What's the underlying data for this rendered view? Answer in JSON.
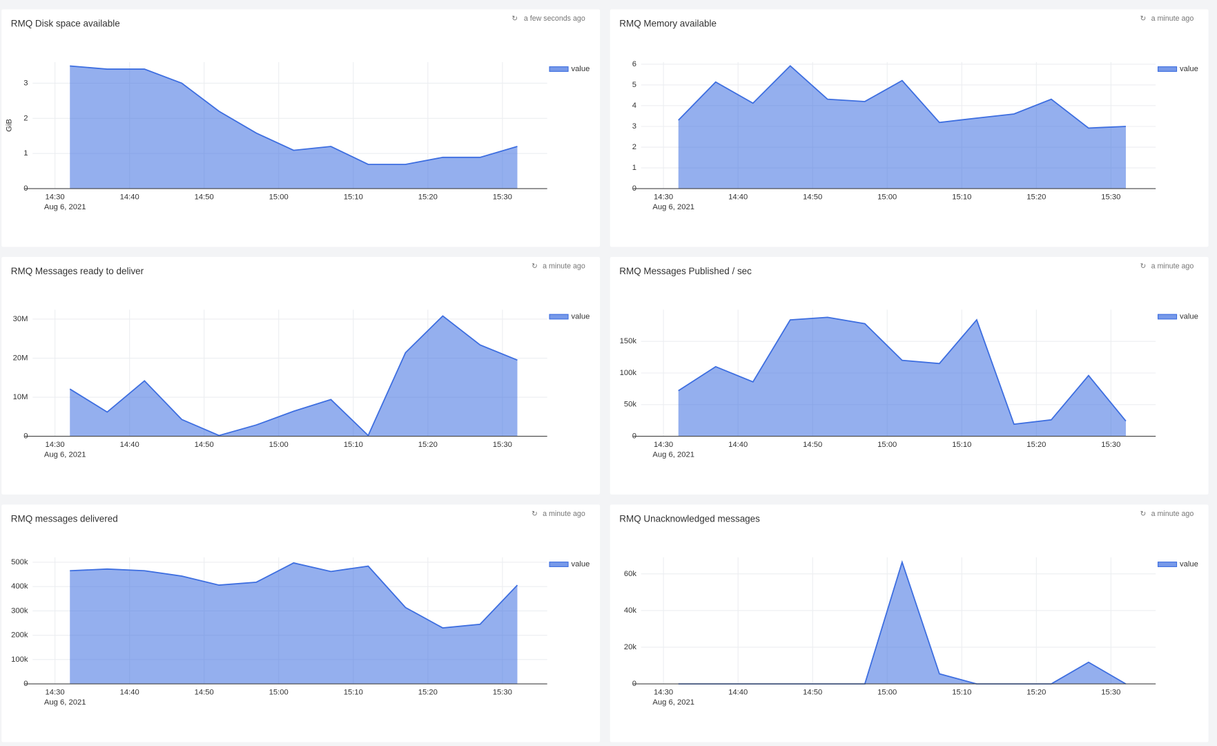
{
  "chart_data": [
    {
      "type": "area",
      "title": "RMQ Disk space available",
      "updated": "a few seconds ago",
      "ylabel": "GiB",
      "x": [
        "14:32",
        "14:37",
        "14:42",
        "14:47",
        "14:52",
        "14:57",
        "15:02",
        "15:07",
        "15:12",
        "15:17",
        "15:22",
        "15:27",
        "15:32"
      ],
      "x_date_label": "Aug 6, 2021",
      "xlim": [
        "14:27",
        "15:36"
      ],
      "xticks": [
        "14:30",
        "14:40",
        "14:50",
        "15:00",
        "15:10",
        "15:20",
        "15:30"
      ],
      "series": [
        {
          "name": "value",
          "color": "#3d6ee0",
          "values": [
            3.49,
            3.4,
            3.4,
            3.0,
            2.2,
            1.58,
            1.09,
            1.2,
            0.69,
            0.69,
            0.89,
            0.89,
            1.2
          ]
        }
      ],
      "ylim": [
        0,
        3.6
      ],
      "yticks": [
        0,
        1,
        2,
        3
      ],
      "grid": true,
      "legend": "top-right"
    },
    {
      "type": "area",
      "title": "RMQ Memory available",
      "updated": "a minute ago",
      "x": [
        "14:32",
        "14:37",
        "14:42",
        "14:47",
        "14:52",
        "14:57",
        "15:02",
        "15:07",
        "15:12",
        "15:17",
        "15:22",
        "15:27",
        "15:32"
      ],
      "x_date_label": "Aug 6, 2021",
      "xlim": [
        "14:27",
        "15:36"
      ],
      "xticks": [
        "14:30",
        "14:40",
        "14:50",
        "15:00",
        "15:10",
        "15:20",
        "15:30"
      ],
      "series": [
        {
          "name": "value",
          "color": "#3d6ee0",
          "values": [
            3.3,
            5.14,
            4.12,
            5.92,
            4.31,
            4.2,
            5.21,
            3.19,
            3.4,
            3.6,
            4.31,
            2.92,
            3.0
          ]
        }
      ],
      "ylim": [
        0,
        6.1
      ],
      "yticks": [
        0,
        1,
        2,
        3,
        4,
        5,
        6
      ],
      "grid": true,
      "legend": "top-right"
    },
    {
      "type": "area",
      "title": "RMQ Messages ready to deliver",
      "updated": "a minute ago",
      "x": [
        "14:32",
        "14:37",
        "14:42",
        "14:47",
        "14:52",
        "14:57",
        "15:02",
        "15:07",
        "15:12",
        "15:17",
        "15:22",
        "15:27",
        "15:32"
      ],
      "x_date_label": "Aug 6, 2021",
      "xlim": [
        "14:27",
        "15:36"
      ],
      "xticks": [
        "14:30",
        "14:40",
        "14:50",
        "15:00",
        "15:10",
        "15:20",
        "15:30"
      ],
      "series": [
        {
          "name": "value",
          "color": "#3d6ee0",
          "values": [
            12100000,
            6200000,
            14200000,
            4300000,
            200000,
            2900000,
            6400000,
            9400000,
            200000,
            21400000,
            30800000,
            23400000,
            19500000
          ]
        }
      ],
      "ylim": [
        0,
        32400000
      ],
      "yticks": [
        0,
        {
          "value": 10000000,
          "label": "10M"
        },
        {
          "value": 20000000,
          "label": "20M"
        },
        {
          "value": 30000000,
          "label": "30M"
        }
      ],
      "grid": true,
      "legend": "top-right"
    },
    {
      "type": "area",
      "title": "RMQ Messages Published / sec",
      "updated": "a minute ago",
      "x": [
        "14:32",
        "14:37",
        "14:42",
        "14:47",
        "14:52",
        "14:57",
        "15:02",
        "15:07",
        "15:12",
        "15:17",
        "15:22",
        "15:27",
        "15:32"
      ],
      "x_date_label": "Aug 6, 2021",
      "xlim": [
        "14:27",
        "15:36"
      ],
      "xticks": [
        "14:30",
        "14:40",
        "14:50",
        "15:00",
        "15:10",
        "15:20",
        "15:30"
      ],
      "series": [
        {
          "name": "value",
          "color": "#3d6ee0",
          "values": [
            72000,
            110000,
            86000,
            184000,
            188000,
            178000,
            120000,
            115000,
            184000,
            19000,
            26000,
            96000,
            24000
          ]
        }
      ],
      "ylim": [
        0,
        200000
      ],
      "yticks": [
        0,
        {
          "value": 50000,
          "label": "50k"
        },
        {
          "value": 100000,
          "label": "100k"
        },
        {
          "value": 150000,
          "label": "150k"
        }
      ],
      "grid": true,
      "legend": "top-right"
    },
    {
      "type": "area",
      "title": "RMQ messages delivered",
      "updated": "a minute ago",
      "x": [
        "14:32",
        "14:37",
        "14:42",
        "14:47",
        "14:52",
        "14:57",
        "15:02",
        "15:07",
        "15:12",
        "15:17",
        "15:22",
        "15:27",
        "15:32"
      ],
      "x_date_label": "Aug 6, 2021",
      "xlim": [
        "14:27",
        "15:36"
      ],
      "xticks": [
        "14:30",
        "14:40",
        "14:50",
        "15:00",
        "15:10",
        "15:20",
        "15:30"
      ],
      "series": [
        {
          "name": "value",
          "color": "#3d6ee0",
          "values": [
            465000,
            472000,
            465000,
            443000,
            406000,
            418000,
            497000,
            462000,
            484000,
            314000,
            230000,
            245000,
            406000
          ]
        }
      ],
      "ylim": [
        0,
        520000
      ],
      "yticks": [
        0,
        {
          "value": 100000,
          "label": "100k"
        },
        {
          "value": 200000,
          "label": "200k"
        },
        {
          "value": 300000,
          "label": "300k"
        },
        {
          "value": 400000,
          "label": "400k"
        },
        {
          "value": 500000,
          "label": "500k"
        }
      ],
      "grid": true,
      "legend": "top-right"
    },
    {
      "type": "area",
      "title": "RMQ Unacknowledged messages",
      "updated": "a minute ago",
      "x": [
        "14:32",
        "14:37",
        "14:42",
        "14:47",
        "14:52",
        "14:57",
        "15:02",
        "15:07",
        "15:12",
        "15:17",
        "15:22",
        "15:27",
        "15:32"
      ],
      "x_date_label": "Aug 6, 2021",
      "xlim": [
        "14:27",
        "15:36"
      ],
      "xticks": [
        "14:30",
        "14:40",
        "14:50",
        "15:00",
        "15:10",
        "15:20",
        "15:30"
      ],
      "series": [
        {
          "name": "value",
          "color": "#3d6ee0",
          "values": [
            0,
            0,
            0,
            0,
            0,
            0,
            66400,
            5500,
            0,
            0,
            0,
            11800,
            0
          ]
        }
      ],
      "ylim": [
        0,
        69000
      ],
      "yticks": [
        0,
        {
          "value": 20000,
          "label": "20k"
        },
        {
          "value": 40000,
          "label": "40k"
        },
        {
          "value": 60000,
          "label": "60k"
        }
      ],
      "grid": true,
      "legend": "top-right"
    }
  ]
}
